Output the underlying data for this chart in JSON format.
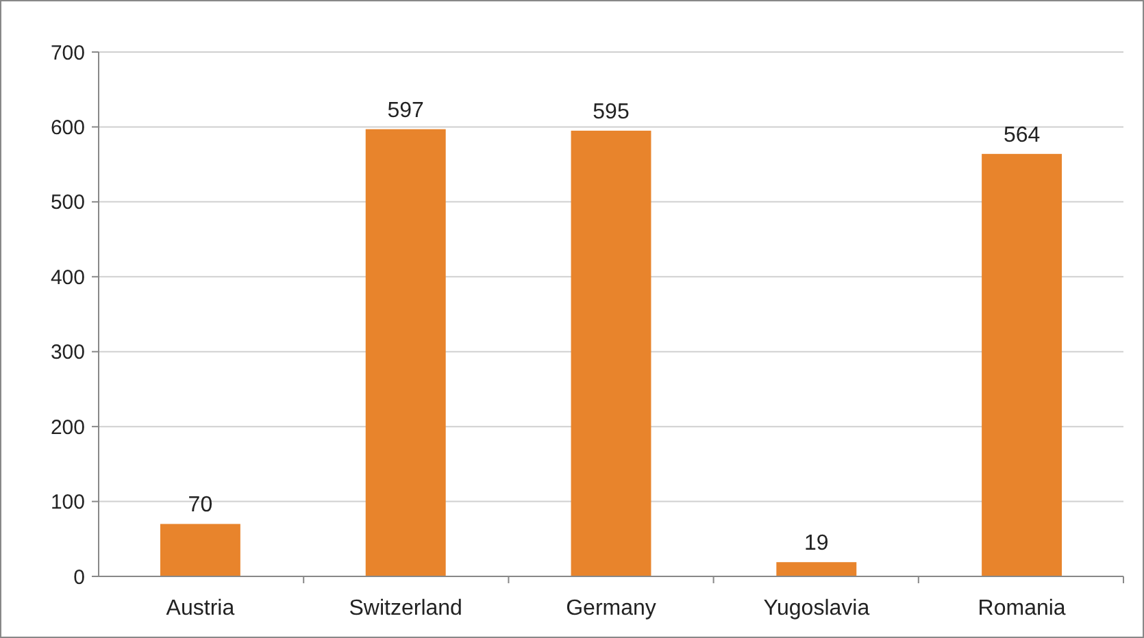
{
  "chart_data": {
    "type": "bar",
    "categories": [
      "Austria",
      "Switzerland",
      "Germany",
      "Yugoslavia",
      "Romania"
    ],
    "values": [
      70,
      597,
      595,
      19,
      564
    ],
    "color": "#e8842c",
    "data_labels": true,
    "ylim": [
      0,
      700
    ],
    "yticks": [
      0,
      100,
      200,
      300,
      400,
      500,
      600,
      700
    ],
    "grid": "y"
  }
}
